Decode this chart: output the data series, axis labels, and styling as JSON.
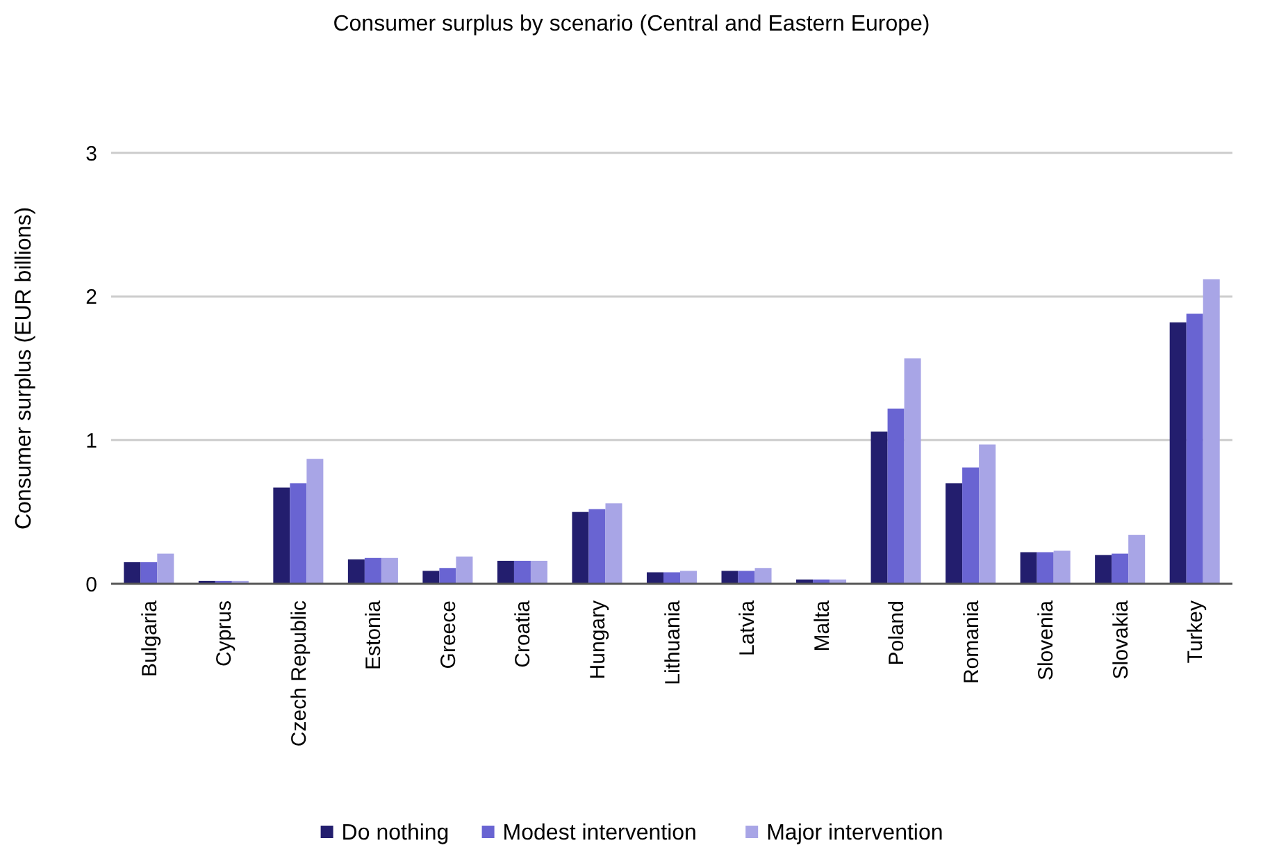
{
  "chart_data": {
    "type": "bar",
    "title": "Consumer surplus by scenario (Central and Eastern Europe)",
    "ylabel": "Consumer surplus (EUR billions)",
    "categories": [
      "Bulgaria",
      "Cyprus",
      "Czech Republic",
      "Estonia",
      "Greece",
      "Croatia",
      "Hungary",
      "Lithuania",
      "Latvia",
      "Malta",
      "Poland",
      "Romania",
      "Slovenia",
      "Slovakia",
      "Turkey"
    ],
    "series": [
      {
        "name": "Do nothing",
        "color": "#231e6e",
        "values": [
          0.15,
          0.02,
          0.67,
          0.17,
          0.09,
          0.16,
          0.5,
          0.08,
          0.09,
          0.03,
          1.06,
          0.7,
          0.22,
          0.2,
          1.82
        ]
      },
      {
        "name": "Modest intervention",
        "color": "#6964d2",
        "values": [
          0.15,
          0.02,
          0.7,
          0.18,
          0.11,
          0.16,
          0.52,
          0.08,
          0.09,
          0.03,
          1.22,
          0.81,
          0.22,
          0.21,
          1.88
        ]
      },
      {
        "name": "Major intervention",
        "color": "#a8a5e6",
        "values": [
          0.21,
          0.02,
          0.87,
          0.18,
          0.19,
          0.16,
          0.56,
          0.09,
          0.11,
          0.03,
          1.57,
          0.97,
          0.23,
          0.34,
          2.12
        ]
      }
    ],
    "ylim": [
      0,
      3
    ],
    "yticks": [
      0,
      1,
      2,
      3
    ],
    "grid": "y",
    "legend": "bottom"
  }
}
